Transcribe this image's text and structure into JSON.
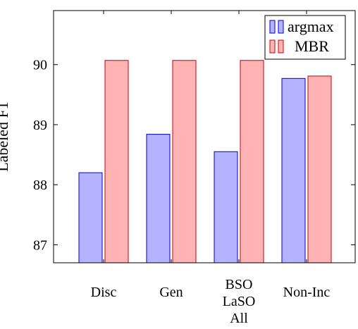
{
  "chart_data": {
    "type": "bar",
    "ylabel": "Labeled F1",
    "categories": [
      [
        "Disc"
      ],
      [
        "Gen"
      ],
      [
        "BSO",
        "LaSO",
        "All"
      ],
      [
        "Non-Inc"
      ]
    ],
    "series": [
      {
        "name": "argmax",
        "values": [
          88.2,
          88.84,
          88.55,
          89.77
        ],
        "fill": "#b3b3ff",
        "stroke": "#0000cc"
      },
      {
        "name": "MBR",
        "values": [
          90.07,
          90.07,
          90.07,
          89.81
        ],
        "fill": "#ffb3b3",
        "stroke": "#cc0000"
      }
    ],
    "ylim": [
      86.7,
      90.9
    ],
    "yticks": [
      "87",
      "88",
      "89",
      "90"
    ],
    "legend_position": "top-right",
    "grid": false
  }
}
